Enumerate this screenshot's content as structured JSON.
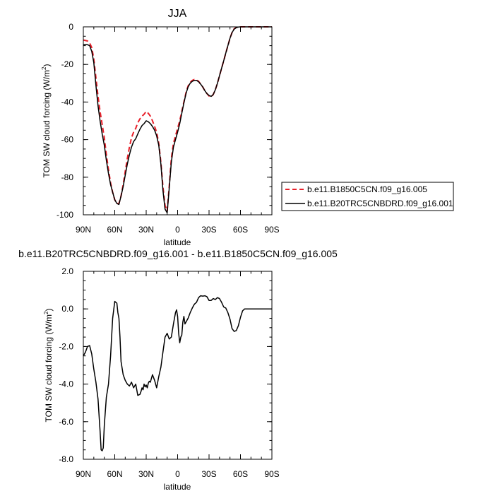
{
  "chart_data": [
    {
      "type": "line",
      "title": "JJA",
      "xlabel": "latitude",
      "ylabel": "TOM SW cloud forcing (W/m",
      "ylabel_sup": "2",
      "ylabel_close": ")",
      "xlim": [
        90,
        -90
      ],
      "ylim": [
        -100,
        0
      ],
      "x_ticks": [
        90,
        60,
        30,
        0,
        -30,
        -60,
        -90
      ],
      "x_tick_labels": [
        "90N",
        "60N",
        "30N",
        "0",
        "30S",
        "60S",
        "90S"
      ],
      "y_ticks": [
        0,
        -20,
        -40,
        -60,
        -80,
        -100
      ],
      "y_tick_labels": [
        "0",
        "-20",
        "-40",
        "-60",
        "-80",
        "-100"
      ],
      "grid": false,
      "legend_position": "right",
      "series": [
        {
          "name": "b.e11.B1850C5CN.f09_g16.005",
          "color": "#e8202a",
          "dash": "dashed",
          "x": [
            90,
            86,
            84,
            82,
            80,
            78,
            76,
            74,
            72,
            70,
            68,
            66,
            64,
            62,
            60,
            58,
            56,
            54,
            52,
            50,
            48,
            46,
            44,
            42,
            40,
            38,
            36,
            34,
            32,
            30,
            28,
            26,
            24,
            22,
            20,
            18,
            16,
            14,
            12,
            10,
            8,
            6,
            4,
            2,
            0,
            -2,
            -4,
            -6,
            -8,
            -10,
            -12,
            -14,
            -16,
            -18,
            -20,
            -22,
            -24,
            -26,
            -28,
            -30,
            -32,
            -34,
            -36,
            -38,
            -40,
            -42,
            -44,
            -46,
            -48,
            -50,
            -52,
            -54,
            -56,
            -58,
            -60,
            -62,
            -64,
            -66,
            -70,
            -80,
            -90
          ],
          "y": [
            -7,
            -7.5,
            -8.5,
            -11,
            -17,
            -27,
            -37,
            -45,
            -52,
            -59,
            -68,
            -76,
            -83,
            -88,
            -92,
            -94,
            -94,
            -90,
            -84,
            -77,
            -70,
            -64,
            -59,
            -56,
            -54,
            -51,
            -49,
            -47.5,
            -46.5,
            -45,
            -46,
            -47.5,
            -50,
            -53,
            -56,
            -62,
            -72,
            -85,
            -95,
            -98,
            -85,
            -70,
            -62,
            -58,
            -54,
            -50,
            -45,
            -40,
            -35,
            -31.5,
            -29.5,
            -28.5,
            -28,
            -28.2,
            -29,
            -30.5,
            -32,
            -34,
            -35.5,
            -36.8,
            -37.2,
            -36,
            -33.5,
            -30,
            -26,
            -22,
            -18,
            -14,
            -10,
            -6,
            -3,
            -1,
            -0.3,
            -0.1,
            0,
            0,
            0,
            0,
            0,
            0,
            0
          ]
        },
        {
          "name": "b.e11.B20TRC5CNBDRD.f09_g16.001",
          "color": "#000000",
          "dash": "solid",
          "x": [
            90,
            86,
            84,
            82,
            80,
            78,
            76,
            74,
            72,
            70,
            68,
            66,
            64,
            62,
            60,
            58,
            56,
            54,
            52,
            50,
            48,
            46,
            44,
            42,
            40,
            38,
            36,
            34,
            32,
            30,
            28,
            26,
            24,
            22,
            20,
            18,
            16,
            14,
            12,
            10,
            8,
            6,
            4,
            2,
            0,
            -2,
            -4,
            -6,
            -8,
            -10,
            -12,
            -14,
            -16,
            -18,
            -20,
            -22,
            -24,
            -26,
            -28,
            -30,
            -32,
            -34,
            -36,
            -38,
            -40,
            -42,
            -44,
            -46,
            -48,
            -50,
            -52,
            -54,
            -56,
            -58,
            -60,
            -62,
            -64,
            -66,
            -70,
            -80,
            -90
          ],
          "y": [
            -9.5,
            -9.5,
            -10,
            -13,
            -19,
            -31,
            -42,
            -50,
            -57,
            -63,
            -71,
            -78,
            -84,
            -88,
            -92,
            -94,
            -94.5,
            -90,
            -85,
            -79,
            -73,
            -68,
            -64,
            -61,
            -59.5,
            -57,
            -54.5,
            -52.5,
            -51.5,
            -50,
            -50.5,
            -51.5,
            -53,
            -55,
            -58,
            -63,
            -73,
            -87,
            -97,
            -99,
            -86,
            -72,
            -64,
            -60,
            -56,
            -51.5,
            -46,
            -40.5,
            -35.5,
            -32,
            -30,
            -29,
            -28.5,
            -28.5,
            -29.2,
            -30.5,
            -32,
            -34,
            -35.5,
            -36.5,
            -37,
            -36,
            -33.5,
            -30,
            -26,
            -22,
            -18,
            -14,
            -10,
            -6,
            -3,
            -1.2,
            -0.4,
            -0.1,
            0,
            0,
            0,
            0,
            0,
            0,
            0
          ]
        }
      ]
    },
    {
      "type": "line",
      "title": "b.e11.B20TRC5CNBDRD.f09_g16.001 - b.e11.B1850C5CN.f09_g16.005",
      "xlabel": "latitude",
      "ylabel": "TOM SW cloud forcing (W/m",
      "ylabel_sup": "2",
      "ylabel_close": ")",
      "xlim": [
        90,
        -90
      ],
      "ylim": [
        -8,
        2
      ],
      "x_ticks": [
        90,
        60,
        30,
        0,
        -30,
        -60,
        -90
      ],
      "x_tick_labels": [
        "90N",
        "60N",
        "30N",
        "0",
        "30S",
        "60S",
        "90S"
      ],
      "y_ticks": [
        2,
        0,
        -2,
        -4,
        -6,
        -8
      ],
      "y_tick_labels": [
        "2.0",
        "0.0",
        "-2.0",
        "-4.0",
        "-6.0",
        "-8.0"
      ],
      "grid": false,
      "series": [
        {
          "color": "#000000",
          "dash": "solid",
          "x": [
            90,
            88,
            86,
            84,
            82,
            80,
            78,
            76,
            74,
            73,
            72,
            71,
            70,
            68,
            66,
            64,
            62,
            60,
            58,
            57,
            56,
            55,
            54,
            52,
            50,
            48,
            46,
            44,
            42,
            40,
            38,
            36,
            35,
            34,
            33,
            32,
            31,
            30,
            29,
            28,
            27,
            26,
            25,
            24,
            22,
            20,
            18,
            16,
            14,
            12,
            10,
            8,
            6,
            4,
            2,
            1,
            0,
            -1,
            -2,
            -3,
            -4,
            -5,
            -6,
            -7,
            -8,
            -10,
            -12,
            -14,
            -16,
            -18,
            -20,
            -22,
            -24,
            -26,
            -28,
            -30,
            -32,
            -34,
            -36,
            -38,
            -40,
            -42,
            -44,
            -46,
            -48,
            -50,
            -52,
            -54,
            -56,
            -58,
            -60,
            -62,
            -64,
            -66,
            -68,
            -70,
            -75,
            -80,
            -85,
            -90
          ],
          "y": [
            -2.5,
            -2.3,
            -2,
            -1.95,
            -2.4,
            -3.2,
            -3.9,
            -4.8,
            -6.5,
            -7.5,
            -7.55,
            -7.4,
            -6.2,
            -4.7,
            -4,
            -2.5,
            -0.5,
            0.4,
            0.3,
            -0.2,
            -0.5,
            -1.5,
            -2.8,
            -3.5,
            -3.8,
            -4,
            -4.1,
            -3.9,
            -4.2,
            -4,
            -4.6,
            -4.55,
            -4.4,
            -4.2,
            -4.3,
            -4,
            -4.15,
            -4.05,
            -4.2,
            -3.95,
            -3.85,
            -3.9,
            -3.7,
            -3.5,
            -3.8,
            -4.2,
            -3.6,
            -3.1,
            -2.3,
            -1.5,
            -1.3,
            -1.6,
            -1.5,
            -0.8,
            -0.2,
            -0.05,
            -0.4,
            -1.3,
            -1.8,
            -1.5,
            -1.4,
            -0.7,
            -0.4,
            -0.8,
            -0.7,
            -0.5,
            -0.2,
            0.05,
            0.25,
            0.35,
            0.6,
            0.7,
            0.68,
            0.7,
            0.65,
            0.45,
            0.45,
            0.55,
            0.5,
            0.6,
            0.55,
            0.35,
            0.1,
            0.05,
            -0.2,
            -0.55,
            -1.05,
            -1.2,
            -1.15,
            -0.9,
            -0.45,
            -0.1,
            0,
            0,
            0,
            0,
            0,
            0,
            0,
            0
          ]
        }
      ]
    }
  ]
}
